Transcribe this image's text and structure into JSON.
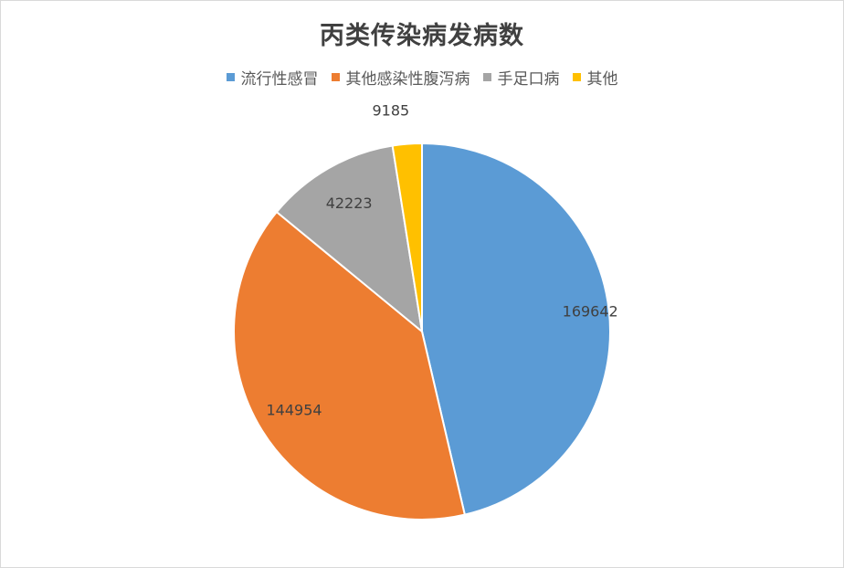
{
  "chart_data": {
    "type": "pie",
    "title": "丙类传染病发病数",
    "categories": [
      "流行性感冒",
      "其他感染性腹泻病",
      "手足口病",
      "其他"
    ],
    "values": [
      169642,
      144954,
      42223,
      9185
    ],
    "colors": [
      "#5b9bd5",
      "#ed7d31",
      "#a5a5a5",
      "#ffc000"
    ],
    "legend_position": "top",
    "data_labels": true
  }
}
